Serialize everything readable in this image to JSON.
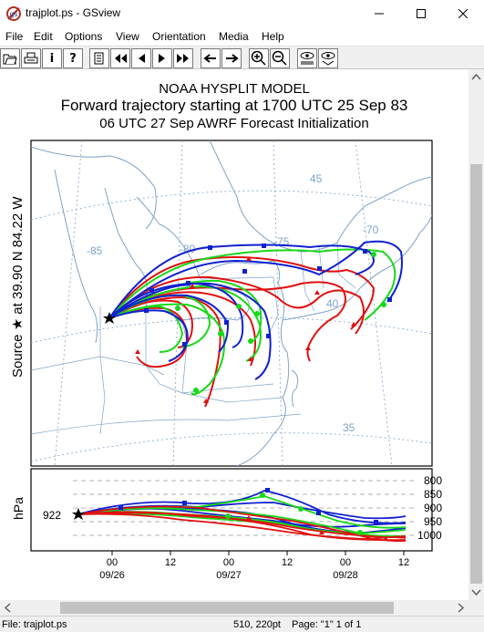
{
  "window": {
    "title": "trajplot.ps - GSview"
  },
  "menu": [
    "File",
    "Edit",
    "Options",
    "View",
    "Orientation",
    "Media",
    "Help"
  ],
  "toolbar": {
    "buttons": [
      "open-icon",
      "print-icon",
      "info-icon",
      "help-icon",
      "page-select-icon",
      "first-page-icon",
      "prev-page-icon",
      "next-page-icon",
      "last-page-icon",
      "back-icon",
      "forward-icon",
      "zoom-in-icon",
      "zoom-out-icon",
      "full-screen-icon",
      "fit-window-icon"
    ],
    "info_label": "i",
    "help_label": "?"
  },
  "document": {
    "title_line1": "NOAA HYSPLIT MODEL",
    "title_line2": "Forward trajectory starting at 1700 UTC 25 Sep 83",
    "title_line3": "06 UTC 27 Sep    AWRF  Forecast Initialization",
    "source_label": "Source ★ at    39.90 N    84.22 W",
    "map_labels": [
      {
        "text": "-85"
      },
      {
        "text": "-80"
      },
      {
        "text": "-75"
      },
      {
        "text": "-70"
      },
      {
        "text": "45"
      },
      {
        "text": "40"
      },
      {
        "text": "35"
      }
    ],
    "hpa_label": "hPa",
    "start_pressure": "922",
    "pressure_levels": [
      "800",
      "850",
      "900",
      "950",
      "1000"
    ],
    "time_ticks": [
      "00",
      "12",
      "00",
      "12",
      "00",
      "12"
    ],
    "date_labels": [
      "09/26",
      "09/27",
      "09/28"
    ]
  },
  "status": {
    "file": "File: trajplot.ps",
    "coords": "510, 220pt",
    "page": "Page: \"1\"  1 of 1"
  },
  "colors": {
    "red": "#e01010",
    "green": "#18d818",
    "blue": "#1020d0",
    "map": "#7fa3c8"
  }
}
